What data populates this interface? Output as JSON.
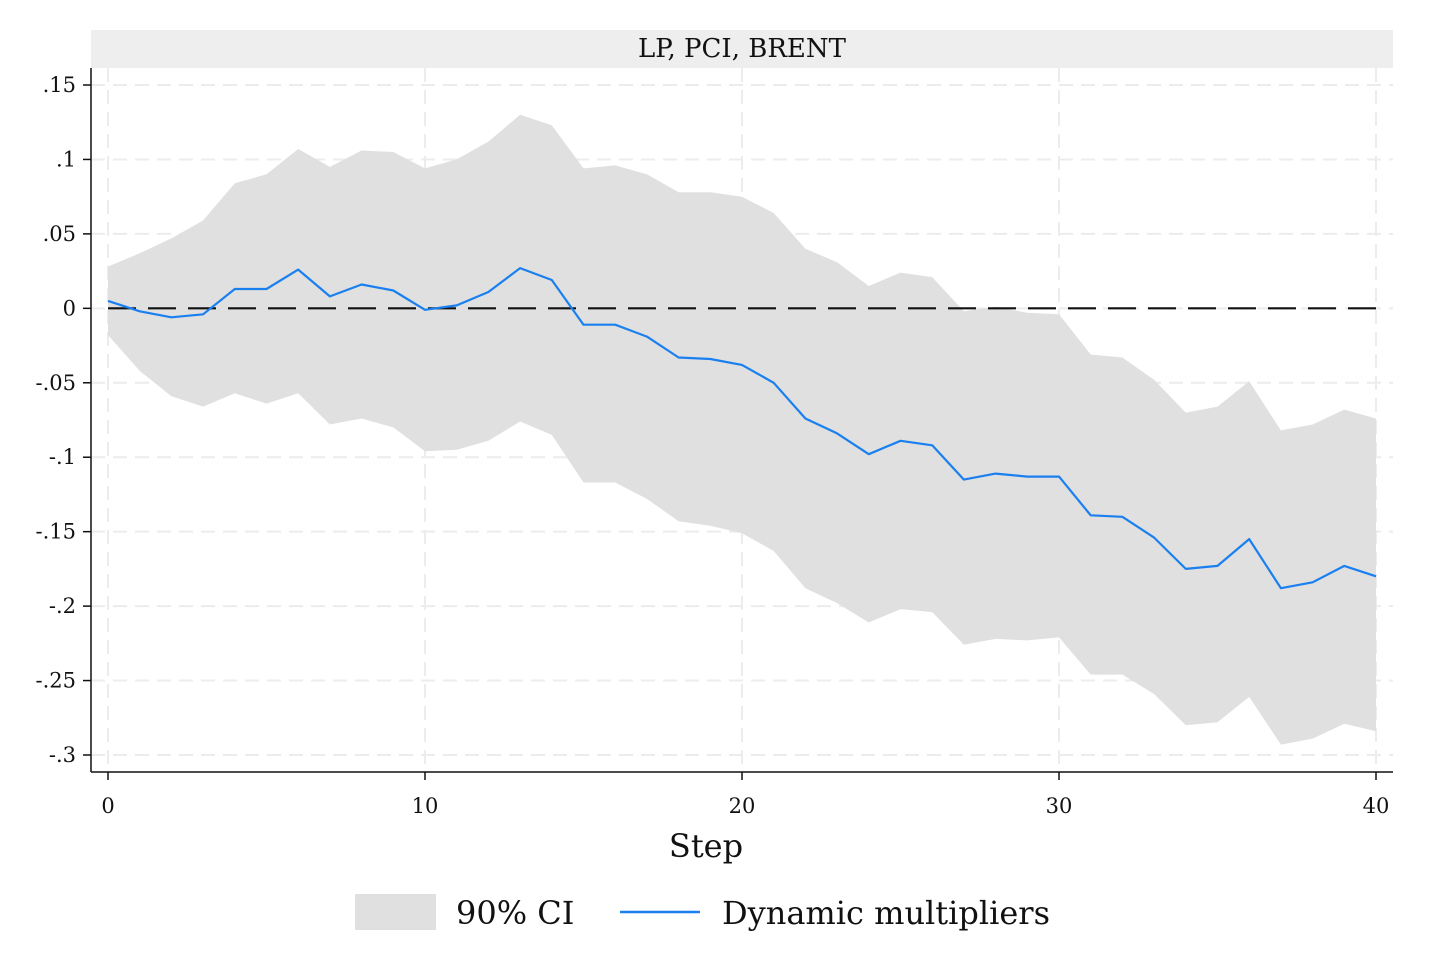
{
  "chart_data": {
    "type": "area",
    "title": "LP, PCI, BRENT",
    "xlabel": "Step",
    "ylabel": "",
    "xlim": [
      0,
      40
    ],
    "ylim": [
      -0.3,
      0.15
    ],
    "xticks": [
      0,
      10,
      20,
      30,
      40
    ],
    "xtick_labels": [
      "0",
      "10",
      "20",
      "30",
      "40"
    ],
    "yticks": [
      0.15,
      0.1,
      0.05,
      0,
      -0.05,
      -0.1,
      -0.15,
      -0.2,
      -0.25,
      -0.3
    ],
    "ytick_labels": [
      ".15",
      ".1",
      ".05",
      "0",
      "-.05",
      "-.1",
      "-.15",
      "-.2",
      "-.25",
      "-.3"
    ],
    "grid": true,
    "legend_position": "bottom",
    "reference_line": {
      "y": 0,
      "style": "dashed"
    },
    "x": [
      0,
      1,
      2,
      3,
      4,
      5,
      6,
      7,
      8,
      9,
      10,
      11,
      12,
      13,
      14,
      15,
      16,
      17,
      18,
      19,
      20,
      21,
      22,
      23,
      24,
      25,
      26,
      27,
      28,
      29,
      30,
      31,
      32,
      33,
      34,
      35,
      36,
      37,
      38,
      39,
      40
    ],
    "series": [
      {
        "name": "90% CI",
        "kind": "band",
        "color": "#e0e0e0",
        "upper": [
          0.028,
          0.037,
          0.047,
          0.059,
          0.084,
          0.09,
          0.107,
          0.095,
          0.106,
          0.105,
          0.094,
          0.1,
          0.112,
          0.13,
          0.123,
          0.094,
          0.096,
          0.09,
          0.078,
          0.078,
          0.075,
          0.064,
          0.04,
          0.031,
          0.015,
          0.024,
          0.021,
          -0.002,
          0.001,
          -0.003,
          -0.004,
          -0.031,
          -0.033,
          -0.048,
          -0.07,
          -0.066,
          -0.049,
          -0.082,
          -0.078,
          -0.068,
          -0.074
        ],
        "lower": [
          -0.018,
          -0.042,
          -0.059,
          -0.066,
          -0.057,
          -0.064,
          -0.057,
          -0.078,
          -0.074,
          -0.08,
          -0.096,
          -0.095,
          -0.089,
          -0.076,
          -0.085,
          -0.117,
          -0.117,
          -0.128,
          -0.143,
          -0.146,
          -0.151,
          -0.163,
          -0.188,
          -0.198,
          -0.211,
          -0.202,
          -0.204,
          -0.226,
          -0.222,
          -0.223,
          -0.221,
          -0.246,
          -0.246,
          -0.259,
          -0.28,
          -0.278,
          -0.261,
          -0.293,
          -0.289,
          -0.279,
          -0.284
        ]
      },
      {
        "name": "Dynamic multipliers",
        "kind": "line",
        "color": "#1a7fef",
        "values": [
          0.005,
          -0.002,
          -0.006,
          -0.004,
          0.013,
          0.013,
          0.026,
          0.008,
          0.016,
          0.012,
          -0.001,
          0.002,
          0.011,
          0.027,
          0.019,
          -0.011,
          -0.011,
          -0.019,
          -0.033,
          -0.034,
          -0.038,
          -0.05,
          -0.074,
          -0.084,
          -0.098,
          -0.089,
          -0.092,
          -0.115,
          -0.111,
          -0.113,
          -0.113,
          -0.139,
          -0.14,
          -0.154,
          -0.175,
          -0.173,
          -0.155,
          -0.188,
          -0.184,
          -0.173,
          -0.18
        ]
      }
    ]
  },
  "legend": {
    "ci_label": "90% CI",
    "line_label": "Dynamic multipliers"
  },
  "colors": {
    "band": "#e0e0e0",
    "line": "#1a7fef",
    "header_bg": "#eeeeee",
    "grid": "#ececec"
  }
}
